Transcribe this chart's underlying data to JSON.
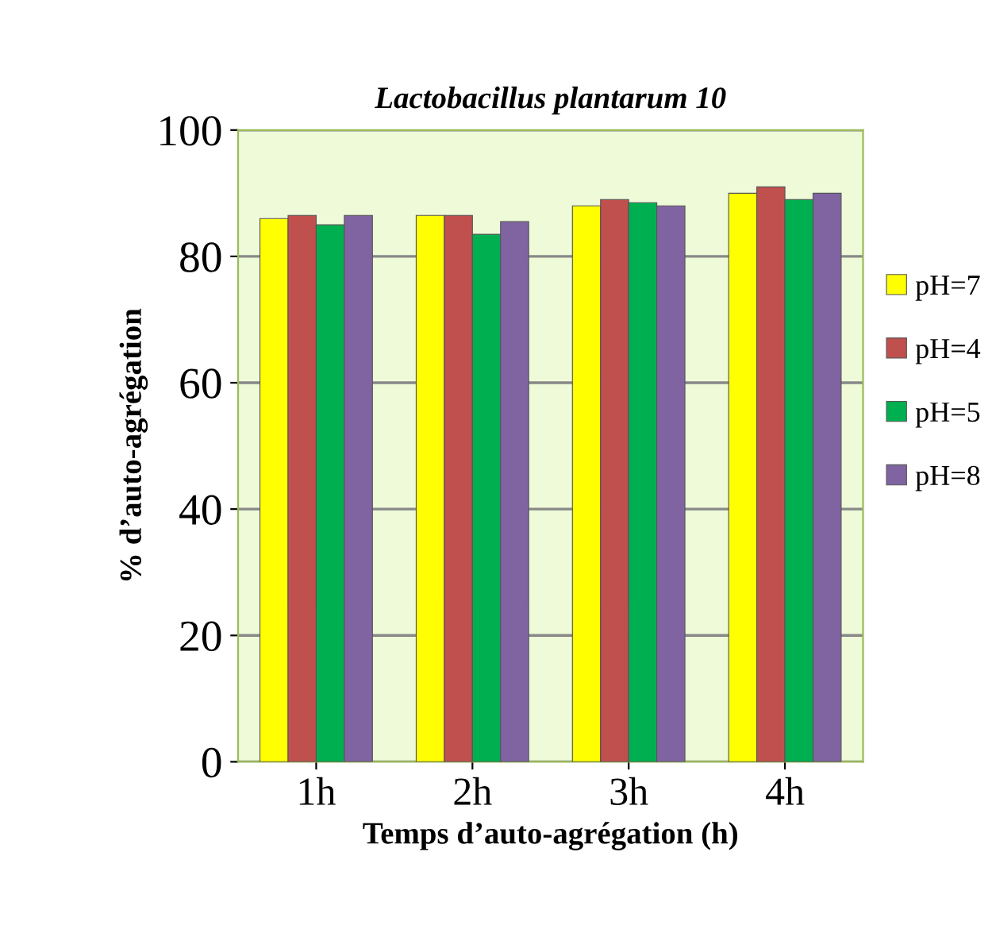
{
  "chart_data": {
    "type": "bar",
    "title": "Lactobacillus plantarum 10",
    "xlabel": "Temps d’auto-agrégation (h)",
    "ylabel": "% d’auto-agrégation",
    "categories": [
      "1h",
      "2h",
      "3h",
      "4h"
    ],
    "series": [
      {
        "name": "pH=7",
        "color": "#ffff00",
        "values": [
          86,
          86.5,
          88,
          90
        ]
      },
      {
        "name": "pH=4",
        "color": "#c0504d",
        "values": [
          86.5,
          86.5,
          89,
          91
        ]
      },
      {
        "name": "pH=5",
        "color": "#00b050",
        "values": [
          85,
          83.5,
          88.5,
          89
        ]
      },
      {
        "name": "pH=8",
        "color": "#8064a2",
        "values": [
          86.5,
          85.5,
          88,
          90
        ]
      }
    ],
    "ylim": [
      0,
      100
    ],
    "yticks": [
      0,
      20,
      40,
      60,
      80,
      100
    ],
    "grid": "y",
    "legend": "right"
  }
}
